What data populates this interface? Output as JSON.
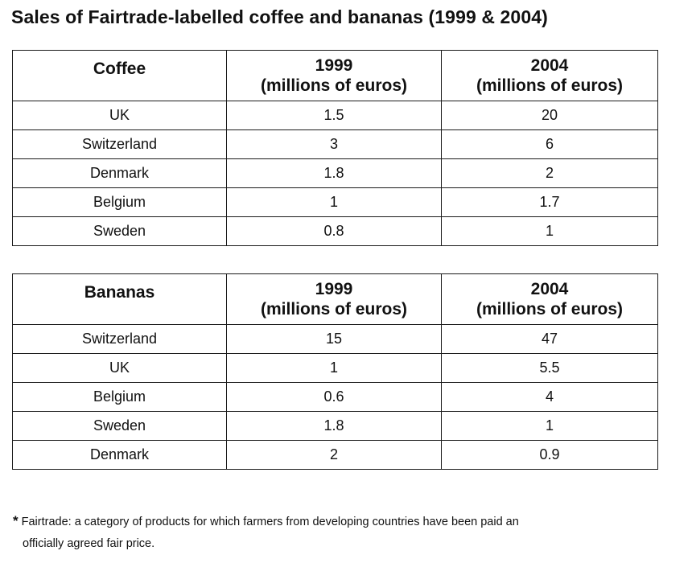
{
  "page": {
    "title": "Sales of Fairtrade-labelled coffee and bananas (1999 & 2004)"
  },
  "chart_data": {
    "type": "table",
    "title": "Sales of Fairtrade-labelled coffee and bananas (1999 & 2004)",
    "tables": [
      {
        "category": "Coffee",
        "columns": [
          {
            "year": "1999",
            "unit": "(millions of euros)"
          },
          {
            "year": "2004",
            "unit": "(millions of euros)"
          }
        ],
        "rows": [
          {
            "country": "UK",
            "v1999": "1.5",
            "v2004": "20"
          },
          {
            "country": "Switzerland",
            "v1999": "3",
            "v2004": "6"
          },
          {
            "country": "Denmark",
            "v1999": "1.8",
            "v2004": "2"
          },
          {
            "country": "Belgium",
            "v1999": "1",
            "v2004": "1.7"
          },
          {
            "country": "Sweden",
            "v1999": "0.8",
            "v2004": "1"
          }
        ]
      },
      {
        "category": "Bananas",
        "columns": [
          {
            "year": "1999",
            "unit": "(millions of euros)"
          },
          {
            "year": "2004",
            "unit": "(millions of euros)"
          }
        ],
        "rows": [
          {
            "country": "Switzerland",
            "v1999": "15",
            "v2004": "47"
          },
          {
            "country": "UK",
            "v1999": "1",
            "v2004": "5.5"
          },
          {
            "country": "Belgium",
            "v1999": "0.6",
            "v2004": "4"
          },
          {
            "country": "Sweden",
            "v1999": "1.8",
            "v2004": "1"
          },
          {
            "country": "Denmark",
            "v1999": "2",
            "v2004": "0.9"
          }
        ]
      }
    ]
  },
  "footnote": {
    "marker": "*",
    "line1": "Fairtrade: a category of products for which farmers from developing countries have been paid an",
    "line2": "officially agreed fair price."
  }
}
